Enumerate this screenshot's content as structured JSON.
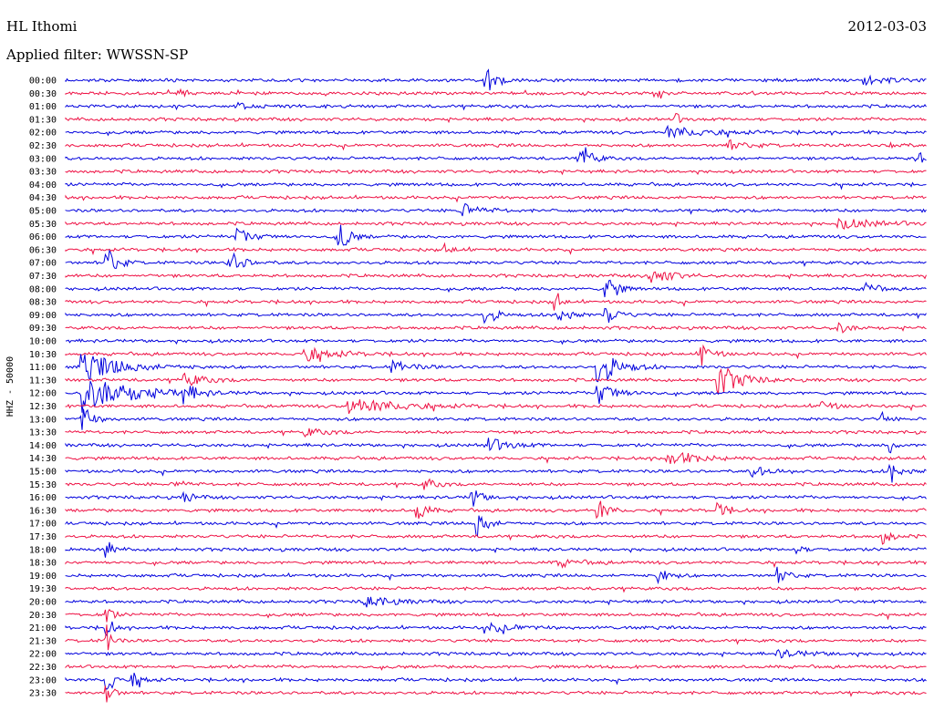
{
  "header": {
    "station": "HL Ithomi",
    "date": "2012-03-03",
    "filter": "Applied filter: WWSSN-SP"
  },
  "chart_data": {
    "type": "line",
    "title": "HL Ithomi",
    "ylabel": "HHZ - 50000",
    "colors": [
      "#0000dd",
      "#ee1144"
    ],
    "rows": [
      "00:00",
      "00:30",
      "01:00",
      "01:30",
      "02:00",
      "02:30",
      "03:00",
      "03:30",
      "04:00",
      "04:30",
      "05:00",
      "05:30",
      "06:00",
      "06:30",
      "07:00",
      "07:30",
      "08:00",
      "08:30",
      "09:00",
      "09:30",
      "10:00",
      "10:30",
      "11:00",
      "11:30",
      "12:00",
      "12:30",
      "13:00",
      "13:30",
      "14:00",
      "14:30",
      "15:00",
      "15:30",
      "16:00",
      "16:30",
      "17:00",
      "17:30",
      "18:00",
      "18:30",
      "19:00",
      "19:30",
      "20:00",
      "20:30",
      "21:00",
      "21:30",
      "22:00",
      "22:30",
      "23:00",
      "23:30"
    ],
    "events": [
      {
        "row": 0,
        "x": 0.49,
        "amp": 16,
        "dur": 0.01
      },
      {
        "row": 0,
        "x": 0.93,
        "amp": 5,
        "dur": 0.02
      },
      {
        "row": 1,
        "x": 0.13,
        "amp": 4,
        "dur": 0.01
      },
      {
        "row": 1,
        "x": 0.69,
        "amp": 6,
        "dur": 0.005
      },
      {
        "row": 2,
        "x": 0.2,
        "amp": 3,
        "dur": 0.02
      },
      {
        "row": 3,
        "x": 0.71,
        "amp": 5,
        "dur": 0.005
      },
      {
        "row": 4,
        "x": 0.7,
        "amp": 6,
        "dur": 0.04
      },
      {
        "row": 5,
        "x": 0.77,
        "amp": 5,
        "dur": 0.02
      },
      {
        "row": 5,
        "x": 0.96,
        "amp": 4,
        "dur": 0.01
      },
      {
        "row": 6,
        "x": 0.6,
        "amp": 16,
        "dur": 0.01
      },
      {
        "row": 6,
        "x": 0.99,
        "amp": 6,
        "dur": 0.01
      },
      {
        "row": 10,
        "x": 0.46,
        "amp": 7,
        "dur": 0.02
      },
      {
        "row": 11,
        "x": 0.9,
        "amp": 5,
        "dur": 0.04
      },
      {
        "row": 12,
        "x": 0.2,
        "amp": 7,
        "dur": 0.02
      },
      {
        "row": 12,
        "x": 0.32,
        "amp": 14,
        "dur": 0.01
      },
      {
        "row": 13,
        "x": 0.44,
        "amp": 5,
        "dur": 0.01
      },
      {
        "row": 14,
        "x": 0.05,
        "amp": 16,
        "dur": 0.01
      },
      {
        "row": 14,
        "x": 0.19,
        "amp": 12,
        "dur": 0.015
      },
      {
        "row": 15,
        "x": 0.68,
        "amp": 9,
        "dur": 0.02
      },
      {
        "row": 16,
        "x": 0.63,
        "amp": 15,
        "dur": 0.01
      },
      {
        "row": 16,
        "x": 0.93,
        "amp": 8,
        "dur": 0.01
      },
      {
        "row": 17,
        "x": 0.57,
        "amp": 12,
        "dur": 0.005
      },
      {
        "row": 18,
        "x": 0.49,
        "amp": 10,
        "dur": 0.01
      },
      {
        "row": 18,
        "x": 0.57,
        "amp": 14,
        "dur": 0.01
      },
      {
        "row": 18,
        "x": 0.63,
        "amp": 10,
        "dur": 0.01
      },
      {
        "row": 19,
        "x": 0.9,
        "amp": 6,
        "dur": 0.01
      },
      {
        "row": 21,
        "x": 0.28,
        "amp": 7,
        "dur": 0.03
      },
      {
        "row": 21,
        "x": 0.74,
        "amp": 14,
        "dur": 0.01
      },
      {
        "row": 22,
        "x": 0.02,
        "amp": 15,
        "dur": 0.04
      },
      {
        "row": 22,
        "x": 0.62,
        "amp": 20,
        "dur": 0.02
      },
      {
        "row": 22,
        "x": 0.38,
        "amp": 6,
        "dur": 0.02
      },
      {
        "row": 23,
        "x": 0.76,
        "amp": 18,
        "dur": 0.02
      },
      {
        "row": 23,
        "x": 0.14,
        "amp": 7,
        "dur": 0.02
      },
      {
        "row": 24,
        "x": 0.02,
        "amp": 20,
        "dur": 0.05
      },
      {
        "row": 24,
        "x": 0.14,
        "amp": 10,
        "dur": 0.01
      },
      {
        "row": 24,
        "x": 0.62,
        "amp": 12,
        "dur": 0.02
      },
      {
        "row": 25,
        "x": 0.33,
        "amp": 9,
        "dur": 0.05
      },
      {
        "row": 25,
        "x": 0.88,
        "amp": 8,
        "dur": 0.01
      },
      {
        "row": 26,
        "x": 0.02,
        "amp": 15,
        "dur": 0.01
      },
      {
        "row": 26,
        "x": 0.95,
        "amp": 6,
        "dur": 0.005
      },
      {
        "row": 27,
        "x": 0.28,
        "amp": 4,
        "dur": 0.02
      },
      {
        "row": 28,
        "x": 0.49,
        "amp": 8,
        "dur": 0.02
      },
      {
        "row": 28,
        "x": 0.96,
        "amp": 7,
        "dur": 0.005
      },
      {
        "row": 29,
        "x": 0.7,
        "amp": 8,
        "dur": 0.03
      },
      {
        "row": 30,
        "x": 0.96,
        "amp": 12,
        "dur": 0.01
      },
      {
        "row": 30,
        "x": 0.8,
        "amp": 5,
        "dur": 0.02
      },
      {
        "row": 31,
        "x": 0.42,
        "amp": 6,
        "dur": 0.01
      },
      {
        "row": 31,
        "x": 0.13,
        "amp": 4,
        "dur": 0.01
      },
      {
        "row": 32,
        "x": 0.47,
        "amp": 13,
        "dur": 0.01
      },
      {
        "row": 32,
        "x": 0.14,
        "amp": 5,
        "dur": 0.01
      },
      {
        "row": 33,
        "x": 0.41,
        "amp": 10,
        "dur": 0.01
      },
      {
        "row": 33,
        "x": 0.62,
        "amp": 11,
        "dur": 0.01
      },
      {
        "row": 33,
        "x": 0.76,
        "amp": 8,
        "dur": 0.01
      },
      {
        "row": 34,
        "x": 0.48,
        "amp": 13,
        "dur": 0.01
      },
      {
        "row": 35,
        "x": 0.95,
        "amp": 8,
        "dur": 0.01
      },
      {
        "row": 36,
        "x": 0.85,
        "amp": 9,
        "dur": 0.005
      },
      {
        "row": 36,
        "x": 0.05,
        "amp": 8,
        "dur": 0.005
      },
      {
        "row": 37,
        "x": 0.57,
        "amp": 5,
        "dur": 0.02
      },
      {
        "row": 38,
        "x": 0.69,
        "amp": 8,
        "dur": 0.01
      },
      {
        "row": 38,
        "x": 0.83,
        "amp": 8,
        "dur": 0.01
      },
      {
        "row": 40,
        "x": 0.35,
        "amp": 5,
        "dur": 0.03
      },
      {
        "row": 41,
        "x": 0.05,
        "amp": 10,
        "dur": 0.005
      },
      {
        "row": 42,
        "x": 0.49,
        "amp": 5,
        "dur": 0.03
      },
      {
        "row": 42,
        "x": 0.05,
        "amp": 12,
        "dur": 0.005
      },
      {
        "row": 43,
        "x": 0.05,
        "amp": 16,
        "dur": 0.005
      },
      {
        "row": 44,
        "x": 0.83,
        "amp": 4,
        "dur": 0.03
      },
      {
        "row": 46,
        "x": 0.08,
        "amp": 7,
        "dur": 0.01
      },
      {
        "row": 46,
        "x": 0.05,
        "amp": 18,
        "dur": 0.005
      },
      {
        "row": 47,
        "x": 0.05,
        "amp": 16,
        "dur": 0.005
      }
    ]
  }
}
